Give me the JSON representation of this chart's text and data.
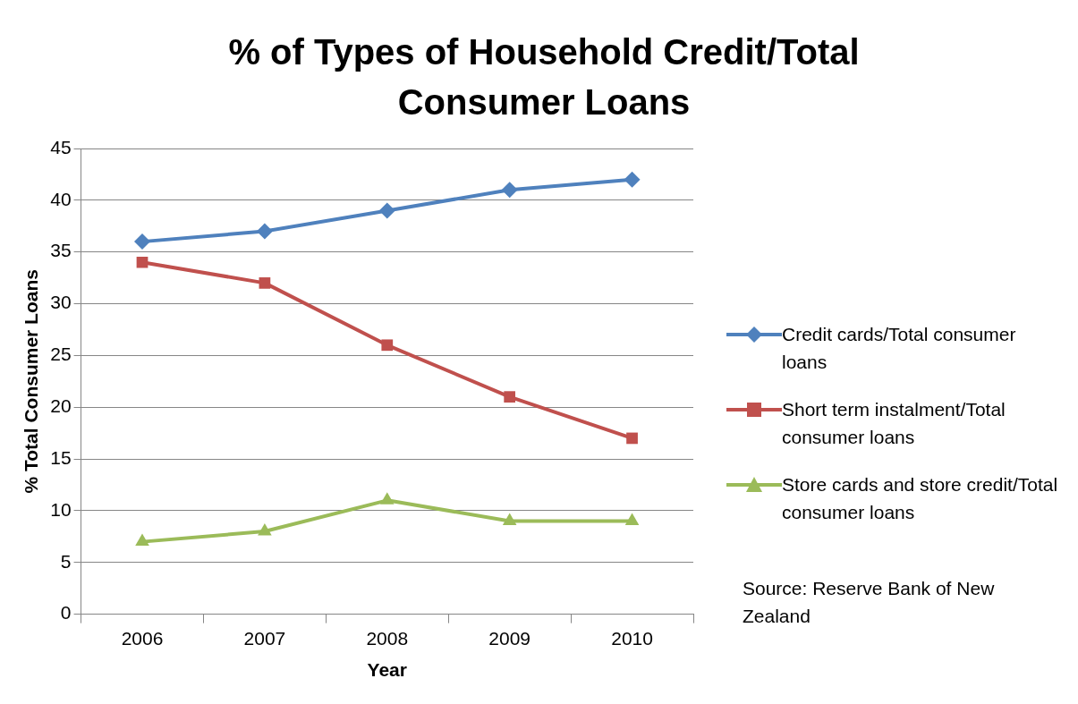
{
  "chart_data": {
    "type": "line",
    "title": "% of Types of Household Credit/Total Consumer Loans",
    "xlabel": "Year",
    "ylabel": "% Total Consumer Loans",
    "categories": [
      "2006",
      "2007",
      "2008",
      "2009",
      "2010"
    ],
    "series": [
      {
        "name": "Credit cards/Total consumer loans",
        "color": "#4f81bd",
        "marker": "diamond",
        "values": [
          36,
          37,
          39,
          41,
          42
        ]
      },
      {
        "name": "Short term instalment/Total consumer loans",
        "color": "#c0504d",
        "marker": "square",
        "values": [
          34,
          32,
          26,
          21,
          17
        ]
      },
      {
        "name": "Store cards and store credit/Total consumer loans",
        "color": "#9bbb59",
        "marker": "triangle",
        "values": [
          7,
          8,
          11,
          9,
          9
        ]
      }
    ],
    "ylim": [
      0,
      45
    ],
    "yticks": [
      0,
      5,
      10,
      15,
      20,
      25,
      30,
      35,
      40,
      45
    ],
    "grid": "y",
    "legend": "right",
    "line_style": "solid",
    "annotations": [
      "Source: Reserve Bank of New Zealand"
    ]
  }
}
